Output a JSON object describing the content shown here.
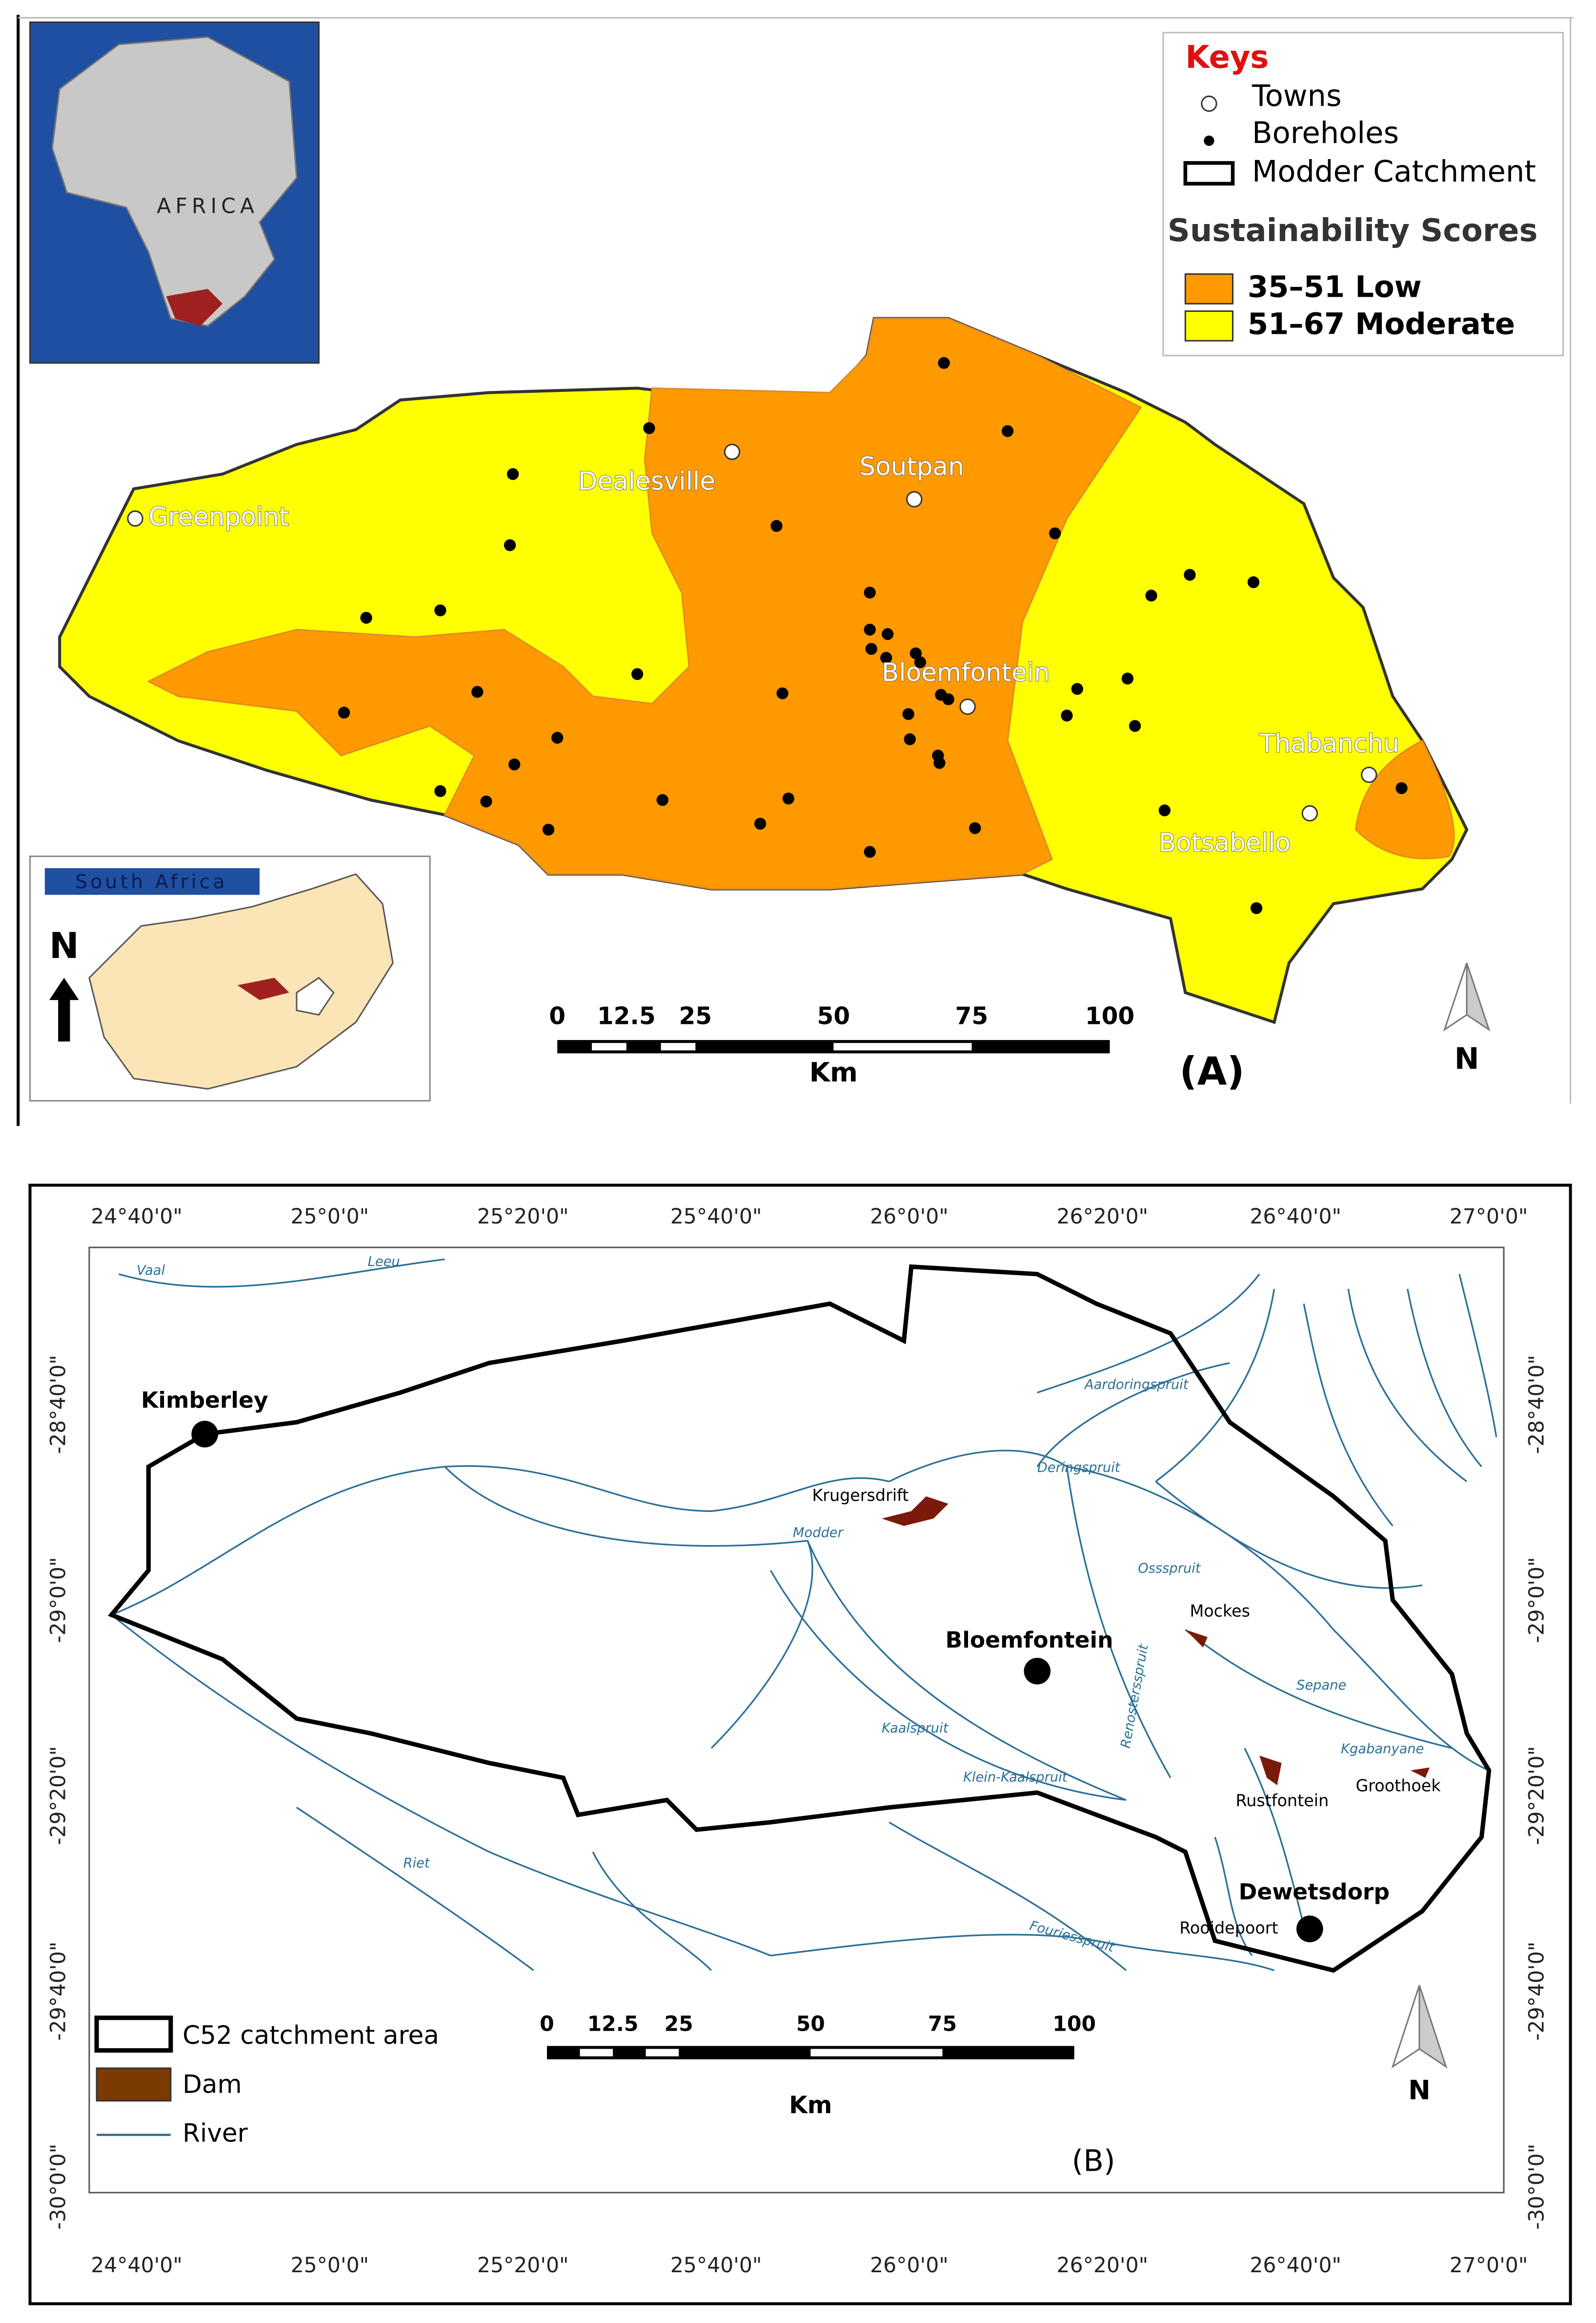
{
  "panel_a": {
    "keys_title": "Keys",
    "legend": [
      "Towns",
      "Boreholes",
      "Modder Catchment"
    ],
    "scores_title": "Sustainability Scores",
    "scores": [
      "35–51 Low",
      "51–67 Moderate"
    ],
    "towns": [
      "Greenpoint",
      "Dealesville",
      "Soutpan",
      "Bloemfontein",
      "Thabanchu",
      "Botsabello"
    ],
    "africa_label": "AFRICA",
    "country_label": "South Africa",
    "north": "N",
    "scale_labels": [
      "0",
      "12.5",
      "25",
      "50",
      "75",
      "100"
    ],
    "scale_unit": "Km",
    "panel_label": "(A)"
  },
  "panel_b": {
    "longitudes": [
      "24°40'0\"",
      "25°0'0\"",
      "25°20'0\"",
      "25°40'0\"",
      "26°0'0\"",
      "26°20'0\"",
      "26°40'0\"",
      "27°0'0\""
    ],
    "latitudes": [
      "-28°40'0\"",
      "-29°0'0\"",
      "-29°20'0\"",
      "-29°40'0\"",
      "-30°0'0\""
    ],
    "towns": [
      "Kimberley",
      "Bloemfontein",
      "Dewetsdorp"
    ],
    "dams": [
      "Krugersdrift",
      "Mockes",
      "Rustfontein",
      "Groothoek",
      "Rooidepoort"
    ],
    "rivers": [
      "Vaal",
      "Leeu",
      "Modder",
      "Kaalspruit",
      "Klein-Kaalspruit",
      "Riet",
      "Renostersspruit",
      "Sepane",
      "Kgabanyane",
      "Ossspruit",
      "Deringspruit",
      "Aardoringspruit",
      "Fouriesspruit"
    ],
    "legend": [
      "C52 catchment area",
      "Dam",
      "River"
    ],
    "north": "N",
    "scale_labels": [
      "0",
      "12.5",
      "25",
      "50",
      "75",
      "100"
    ],
    "scale_unit": "Km",
    "panel_label": "(B)"
  }
}
